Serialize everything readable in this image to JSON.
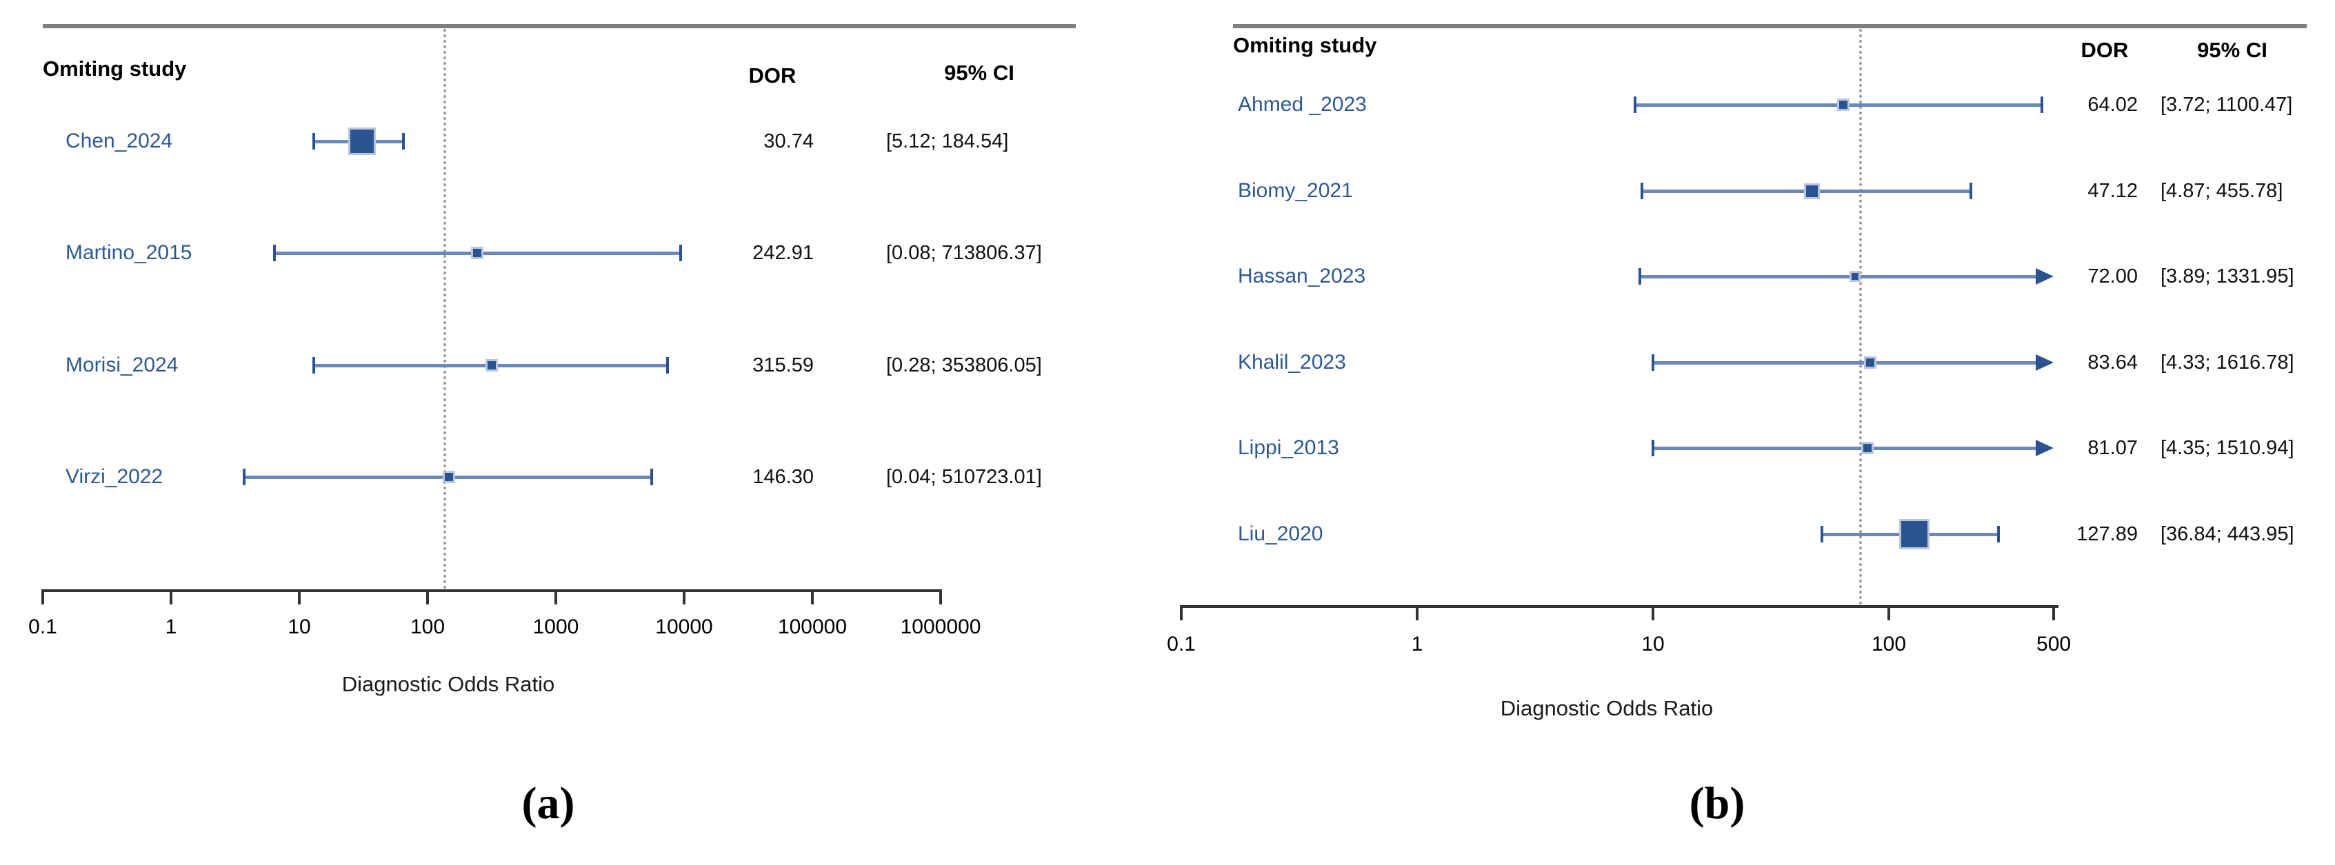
{
  "figure": {
    "caption_a": "(a)",
    "caption_b": "(b)"
  },
  "colors": {
    "label_blue": "#2e5893",
    "marker_blue": "#2b5391",
    "line_blue": "#6a89ba",
    "halo_blue": "#b9c7de",
    "reference_gray": "#9a9a9a",
    "rule_gray": "#7f7f7f",
    "axis_black": "#333333"
  },
  "chart_data": [
    {
      "panel": "a",
      "type": "forest",
      "column_headers": {
        "study": "Omiting study",
        "dor": "DOR",
        "ci": "95% CI"
      },
      "xlabel": "Diagnostic Odds Ratio",
      "x_scale": "log",
      "xlim": [
        0.1,
        1000000
      ],
      "x_ticks": [
        "0.1",
        "1",
        "10",
        "100",
        "1000",
        "10000",
        "100000",
        "1000000"
      ],
      "reference_line": 133,
      "grid": false,
      "rows": [
        {
          "study": "Chen_2024",
          "dor": "30.74",
          "ci": "[5.12; 184.54]",
          "dor_value": 30.74,
          "ci_low": 5.12,
          "ci_high": 184.54,
          "plot_low": 13,
          "plot_high": 65,
          "marker_px": 34,
          "arrow_high": false
        },
        {
          "study": "Martino_2015",
          "dor": "242.91",
          "ci": "[0.08; 713806.37]",
          "dor_value": 242.91,
          "ci_low": 0.08,
          "ci_high": 713806.37,
          "plot_low": 6.4,
          "plot_high": 9400,
          "marker_px": 12,
          "arrow_high": false
        },
        {
          "study": "Morisi_2024",
          "dor": "315.59",
          "ci": "[0.28; 353806.05]",
          "dor_value": 315.59,
          "ci_low": 0.28,
          "ci_high": 353806.05,
          "plot_low": 13,
          "plot_high": 7400,
          "marker_px": 12,
          "arrow_high": false
        },
        {
          "study": "Virzi_2022",
          "dor": "146.30",
          "ci": "[0.04; 510723.01]",
          "dor_value": 146.3,
          "ci_low": 0.04,
          "ci_high": 510723.01,
          "plot_low": 3.7,
          "plot_high": 5600,
          "marker_px": 12,
          "arrow_high": false
        }
      ]
    },
    {
      "panel": "b",
      "type": "forest",
      "column_headers": {
        "study": "Omiting study",
        "dor": "DOR",
        "ci": "95% CI"
      },
      "xlabel": "Diagnostic Odds Ratio",
      "x_scale": "log",
      "xlim": [
        0.1,
        500
      ],
      "x_ticks": [
        "0.1",
        "1",
        "10",
        "100",
        "500"
      ],
      "reference_line": 75,
      "grid": false,
      "rows": [
        {
          "study": "Ahmed _2023",
          "dor": "64.02",
          "ci": "[3.72; 1100.47]",
          "dor_value": 64.02,
          "ci_low": 3.72,
          "ci_high": 1100.47,
          "plot_low": 8.4,
          "plot_high": 446,
          "marker_px": 12,
          "arrow_high": false
        },
        {
          "study": "Biomy_2021",
          "dor": "47.12",
          "ci": "[4.87; 455.78]",
          "dor_value": 47.12,
          "ci_low": 4.87,
          "ci_high": 455.78,
          "plot_low": 9,
          "plot_high": 223,
          "marker_px": 17,
          "arrow_high": false
        },
        {
          "study": "Hassan_2023",
          "dor": "72.00",
          "ci": "[3.89; 1331.95]",
          "dor_value": 72.0,
          "ci_low": 3.89,
          "ci_high": 1331.95,
          "plot_low": 8.8,
          "plot_high": 500,
          "marker_px": 10,
          "arrow_high": true
        },
        {
          "study": "Khalil_2023",
          "dor": "83.64",
          "ci": "[4.33; 1616.78]",
          "dor_value": 83.64,
          "ci_low": 4.33,
          "ci_high": 1616.78,
          "plot_low": 10,
          "plot_high": 500,
          "marker_px": 12,
          "arrow_high": true
        },
        {
          "study": "Lippi_2013",
          "dor": "81.07",
          "ci": "[4.35; 1510.94]",
          "dor_value": 81.07,
          "ci_low": 4.35,
          "ci_high": 1510.94,
          "plot_low": 10,
          "plot_high": 500,
          "marker_px": 12,
          "arrow_high": true
        },
        {
          "study": "Liu_2020",
          "dor": "127.89",
          "ci": "[36.84; 443.95]",
          "dor_value": 127.89,
          "ci_low": 36.84,
          "ci_high": 443.95,
          "plot_low": 52,
          "plot_high": 292,
          "marker_px": 38,
          "arrow_high": false
        }
      ]
    }
  ]
}
